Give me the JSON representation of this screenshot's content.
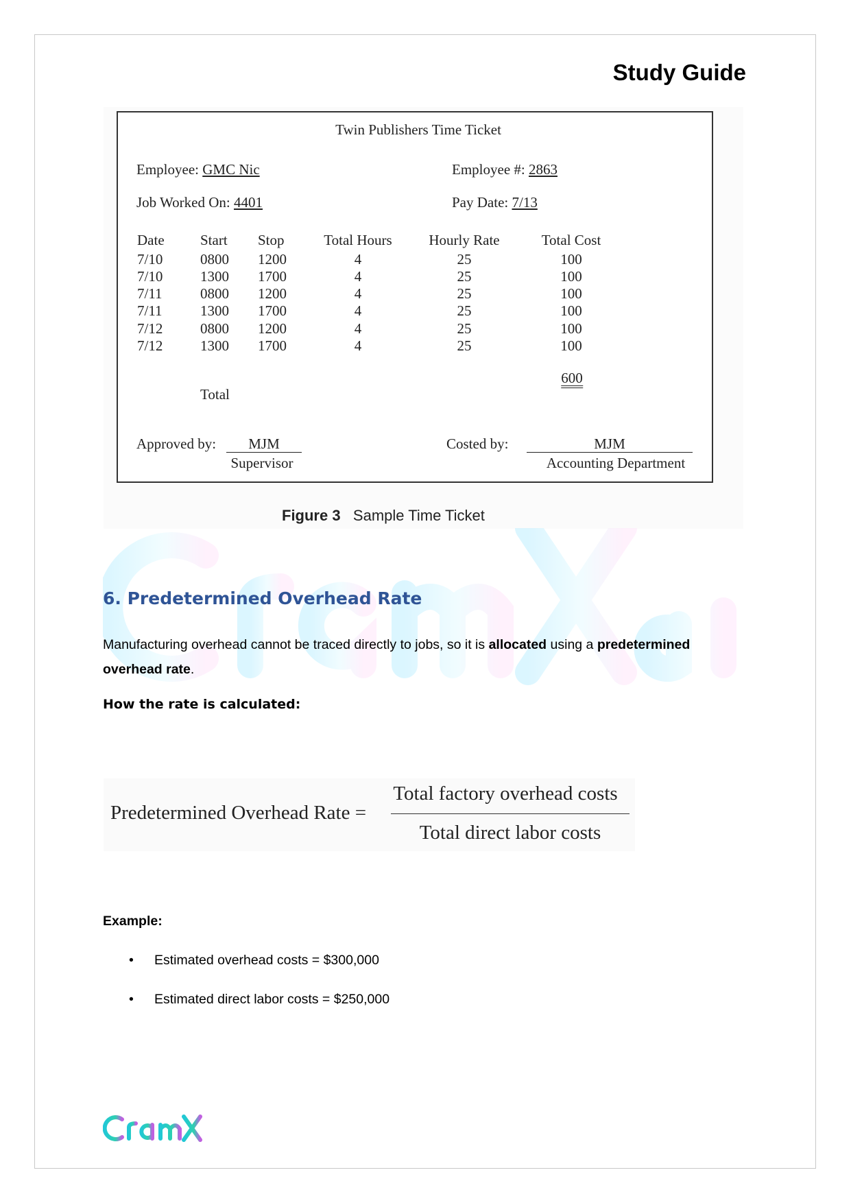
{
  "header": {
    "title": "Study Guide"
  },
  "figure": {
    "ticket_title": "Twin Publishers Time Ticket",
    "employee_label": "Employee:",
    "employee": "GMC Nic",
    "employee_no_label": "Employee #:",
    "employee_no": "2863",
    "job_label": "Job Worked On:",
    "job": "4401",
    "pay_date_label": "Pay Date:",
    "pay_date": "7/13",
    "columns": [
      "Date",
      "Start",
      "Stop",
      "Total Hours",
      "Hourly Rate",
      "Total Cost"
    ],
    "rows": [
      [
        "7/10",
        "0800",
        "1200",
        "4",
        "25",
        "100"
      ],
      [
        "7/10",
        "1300",
        "1700",
        "4",
        "25",
        "100"
      ],
      [
        "7/11",
        "0800",
        "1200",
        "4",
        "25",
        "100"
      ],
      [
        "7/11",
        "1300",
        "1700",
        "4",
        "25",
        "100"
      ],
      [
        "7/12",
        "0800",
        "1200",
        "4",
        "25",
        "100"
      ],
      [
        "7/12",
        "1300",
        "1700",
        "4",
        "25",
        "100"
      ]
    ],
    "total_label": "Total",
    "total": "600",
    "approved_label": "Approved by:",
    "approved_by": "MJM",
    "approved_role": "Supervisor",
    "costed_label": "Costed by:",
    "costed_by": "MJM",
    "costed_role": "Accounting Department",
    "caption_num": "Figure 3",
    "caption_text": "Sample Time Ticket"
  },
  "watermark": "CramX.ai",
  "section": {
    "heading": "6. Predetermined Overhead Rate",
    "p1_a": "Manufacturing overhead cannot be traced directly to jobs, so it is ",
    "p1_b": "allocated",
    "p1_c": " using a ",
    "p1_d": "predetermined",
    "p1_e": "overhead rate",
    "p1_f": ".",
    "how": "How the rate is calculated:",
    "formula_lhs": "Predetermined Overhead Rate =",
    "formula_num": "Total factory overhead costs",
    "formula_den": "Total direct labor costs",
    "example": "Example:",
    "bullets": [
      "Estimated overhead costs = $300,000",
      "Estimated direct labor costs = $250,000"
    ]
  },
  "footer": {
    "logo": "CramX"
  }
}
